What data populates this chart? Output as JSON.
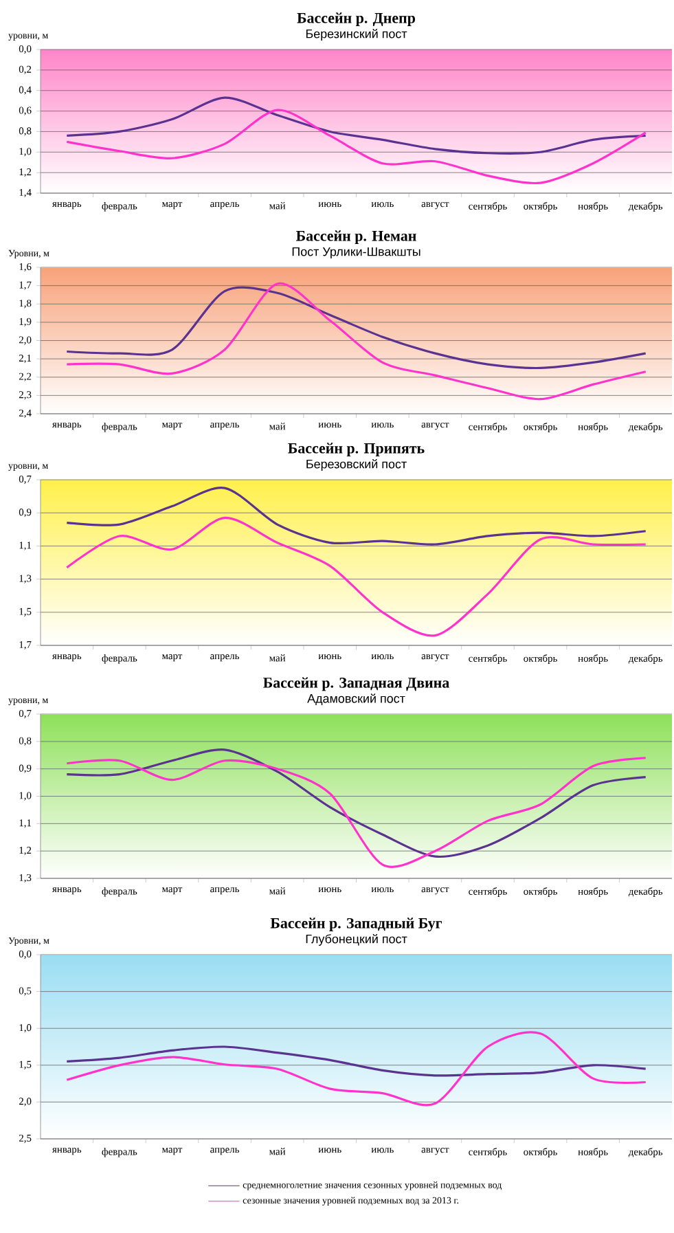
{
  "chart_data": [
    {
      "type": "line",
      "title": "Бассейн р. Днепр",
      "subtitle": "Березинский пост",
      "ylabel": "уровни, м",
      "categories": [
        "январь",
        "февраль",
        "март",
        "апрель",
        "май",
        "июнь",
        "июль",
        "август",
        "сентябрь",
        "октябрь",
        "ноябрь",
        "декабрь"
      ],
      "ylim": [
        1.4,
        0.0
      ],
      "yticks": [
        {
          "value": 0.0,
          "label": "0,0"
        },
        {
          "value": 0.2,
          "label": "0,2"
        },
        {
          "value": 0.4,
          "label": "0,4"
        },
        {
          "value": 0.6,
          "label": "0,6"
        },
        {
          "value": 0.8,
          "label": "0,8"
        },
        {
          "value": 1.0,
          "label": "1,0"
        },
        {
          "value": 1.2,
          "label": "1,2"
        },
        {
          "value": 1.4,
          "label": "1,4"
        }
      ],
      "grid": "y",
      "marker": "none",
      "legend": false,
      "series": [
        {
          "color": "#5a3290",
          "values": [
            0.84,
            0.8,
            0.68,
            0.47,
            0.64,
            0.8,
            0.88,
            0.97,
            1.01,
            1.0,
            0.88,
            0.84
          ]
        },
        {
          "color": "#ff33cc",
          "values": [
            0.9,
            0.99,
            1.06,
            0.92,
            0.59,
            0.84,
            1.11,
            1.09,
            1.23,
            1.3,
            1.11,
            0.81
          ]
        }
      ]
    },
    {
      "type": "line",
      "title": "Бассейн р. Неман",
      "subtitle": "Пост Урлики-Швакшты",
      "ylabel": "Уровни, м",
      "categories": [
        "январь",
        "февраль",
        "март",
        "апрель",
        "май",
        "июнь",
        "июль",
        "август",
        "сентябрь",
        "октябрь",
        "ноябрь",
        "декабрь"
      ],
      "ylim": [
        2.4,
        1.6
      ],
      "yticks": [
        {
          "value": 1.6,
          "label": "1,6"
        },
        {
          "value": 1.7,
          "label": "1,7"
        },
        {
          "value": 1.8,
          "label": "1,8"
        },
        {
          "value": 1.9,
          "label": "1,9"
        },
        {
          "value": 2.0,
          "label": "2,0"
        },
        {
          "value": 2.1,
          "label": "2,1"
        },
        {
          "value": 2.2,
          "label": "2,2"
        },
        {
          "value": 2.3,
          "label": "2,3"
        },
        {
          "value": 2.4,
          "label": "2,4"
        }
      ],
      "grid": "y",
      "marker": "none",
      "legend": false,
      "series": [
        {
          "color": "#5a3290",
          "values": [
            2.06,
            2.07,
            2.05,
            1.73,
            1.74,
            1.86,
            1.98,
            2.07,
            2.13,
            2.15,
            2.12,
            2.07
          ]
        },
        {
          "color": "#ff33cc",
          "values": [
            2.13,
            2.13,
            2.18,
            2.05,
            1.69,
            1.89,
            2.12,
            2.19,
            2.26,
            2.32,
            2.24,
            2.17
          ]
        }
      ]
    },
    {
      "type": "line",
      "title": "Бассейн р. Припять",
      "subtitle": "Березовский пост",
      "ylabel": "уровни, м",
      "categories": [
        "январь",
        "февраль",
        "март",
        "апрель",
        "май",
        "июнь",
        "июль",
        "август",
        "сентябрь",
        "октябрь",
        "ноябрь",
        "декабрь"
      ],
      "ylim": [
        1.7,
        0.7
      ],
      "yticks": [
        {
          "value": 0.7,
          "label": "0,7"
        },
        {
          "value": 0.9,
          "label": "0,9"
        },
        {
          "value": 1.1,
          "label": "1,1"
        },
        {
          "value": 1.3,
          "label": "1,3"
        },
        {
          "value": 1.5,
          "label": "1,5"
        },
        {
          "value": 1.7,
          "label": "1,7"
        }
      ],
      "grid": "y",
      "marker": "none",
      "legend": false,
      "series": [
        {
          "color": "#5a3290",
          "values": [
            0.96,
            0.97,
            0.86,
            0.75,
            0.97,
            1.08,
            1.07,
            1.09,
            1.04,
            1.02,
            1.04,
            1.01
          ]
        },
        {
          "color": "#ff33cc",
          "values": [
            1.23,
            1.04,
            1.12,
            0.93,
            1.08,
            1.22,
            1.5,
            1.64,
            1.39,
            1.06,
            1.09,
            1.09
          ]
        }
      ]
    },
    {
      "type": "line",
      "title": "Бассейн р. Западная Двина",
      "subtitle": "Адамовский пост",
      "ylabel": "уровни, м",
      "categories": [
        "январь",
        "февраль",
        "март",
        "апрель",
        "май",
        "июнь",
        "июль",
        "август",
        "сентябрь",
        "октябрь",
        "ноябрь",
        "декабрь"
      ],
      "ylim": [
        1.3,
        0.7
      ],
      "yticks": [
        {
          "value": 0.7,
          "label": "0,7"
        },
        {
          "value": 0.8,
          "label": "0,8"
        },
        {
          "value": 0.9,
          "label": "0,9"
        },
        {
          "value": 1.0,
          "label": "1,0"
        },
        {
          "value": 1.1,
          "label": "1,1"
        },
        {
          "value": 1.2,
          "label": "1,2"
        },
        {
          "value": 1.3,
          "label": "1,3"
        }
      ],
      "grid": "y",
      "marker": "none",
      "legend": false,
      "series": [
        {
          "color": "#5a3290",
          "values": [
            0.92,
            0.92,
            0.87,
            0.83,
            0.91,
            1.04,
            1.14,
            1.22,
            1.18,
            1.08,
            0.96,
            0.93
          ]
        },
        {
          "color": "#ff33cc",
          "values": [
            0.88,
            0.87,
            0.94,
            0.87,
            0.9,
            0.99,
            1.25,
            1.2,
            1.09,
            1.03,
            0.89,
            0.86
          ]
        }
      ]
    },
    {
      "type": "line",
      "title": "Бассейн р. Западный Буг",
      "subtitle": "Глубонецкий пост",
      "ylabel": "Уровни, м",
      "categories": [
        "январь",
        "февраль",
        "март",
        "апрель",
        "май",
        "июнь",
        "июль",
        "август",
        "сентябрь",
        "октябрь",
        "ноябрь",
        "декабрь"
      ],
      "ylim": [
        2.5,
        0.0
      ],
      "yticks": [
        {
          "value": 0.0,
          "label": "0,0"
        },
        {
          "value": 0.5,
          "label": "0,5"
        },
        {
          "value": 1.0,
          "label": "1,0"
        },
        {
          "value": 1.5,
          "label": "1,5"
        },
        {
          "value": 2.0,
          "label": "2,0"
        },
        {
          "value": 2.5,
          "label": "2,5"
        }
      ],
      "grid": "y",
      "marker": "none",
      "legend": "bottom",
      "series": [
        {
          "name": "среднемноголетние значения сезонных уровней подземных вод",
          "color": "#5a3290",
          "values": [
            1.45,
            1.4,
            1.3,
            1.25,
            1.33,
            1.43,
            1.57,
            1.64,
            1.62,
            1.6,
            1.5,
            1.55
          ]
        },
        {
          "name": "сезонные значения уровней подземных вод за 2013 г.",
          "color": "#ff33cc",
          "values": [
            1.7,
            1.5,
            1.39,
            1.49,
            1.55,
            1.82,
            1.88,
            2.02,
            1.25,
            1.07,
            1.68,
            1.73
          ]
        }
      ]
    }
  ]
}
